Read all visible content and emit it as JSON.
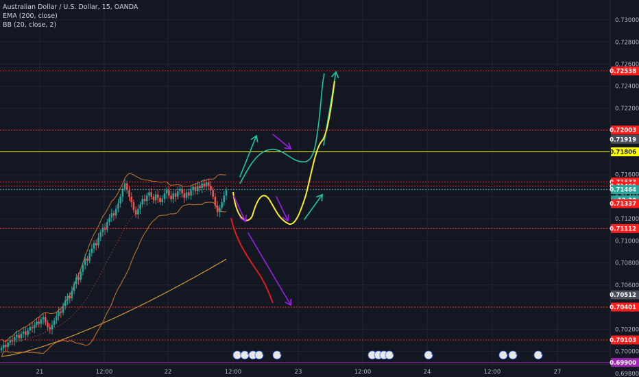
{
  "header": {
    "title": "Australian Dollar / U.S. Dollar, 15, OANDA",
    "indicators": [
      "EMA (200, close)",
      "BB (20, close, 2)"
    ]
  },
  "colors": {
    "background": "#131722",
    "grid": "#1f2431",
    "up": "#26a69a",
    "down": "#ef5350",
    "red_level": "#ff1e1e",
    "yellow_level": "#ffff00",
    "purple_level": "#9c27b0",
    "ema": "#d29a3a",
    "bb": "#c97a2b",
    "teal_path": "#1ec8a0",
    "yellow_path": "#ffee2a",
    "red_path": "#e31b1b",
    "purple_path": "#9c1fe6"
  },
  "chart_data": {
    "type": "candlestick",
    "ylim": [
      0.6988,
      0.7318
    ],
    "y_ticks": [
      "0.69800",
      "0.70000",
      "0.70200",
      "0.70400",
      "0.70600",
      "0.70800",
      "0.71000",
      "0.71200",
      "0.71400",
      "0.71600",
      "0.71800",
      "0.72000",
      "0.72200",
      "0.72400",
      "0.72600",
      "0.72800",
      "0.73000"
    ],
    "x_ticks": [
      "21",
      "12:00",
      "22",
      "12:00",
      "23",
      "12:00",
      "24",
      "12:00",
      "27"
    ],
    "price_badges": [
      {
        "label": "0.72538",
        "value": 0.72538,
        "color": "#ff1e1e"
      },
      {
        "label": "0.72003",
        "value": 0.72003,
        "color": "#ff1e1e"
      },
      {
        "label": "0.71919",
        "value": 0.71919,
        "color": "#4a4e58"
      },
      {
        "label": "0.71806",
        "value": 0.71806,
        "color": "#ffff00"
      },
      {
        "label": "0.71533",
        "value": 0.71533,
        "color": "#ff1e1e"
      },
      {
        "label": "0.71495",
        "value": 0.71495,
        "color": "#ff1e1e"
      },
      {
        "label": "0.71464",
        "value": 0.71464,
        "color": "#26a69a"
      },
      {
        "label": "12:30",
        "value": 0.7137,
        "color": "#26a69a"
      },
      {
        "label": "0.71337",
        "value": 0.71337,
        "color": "#ff1e1e"
      },
      {
        "label": "0.71112",
        "value": 0.71112,
        "color": "#ff1e1e"
      },
      {
        "label": "0.70512",
        "value": 0.70512,
        "color": "#4a4e58"
      },
      {
        "label": "0.70401",
        "value": 0.70401,
        "color": "#ff1e1e"
      },
      {
        "label": "0.70103",
        "value": 0.70103,
        "color": "#ff1e1e"
      },
      {
        "label": "0.69900",
        "value": 0.699,
        "color": "#9c27b0"
      }
    ],
    "levels": [
      {
        "value": 0.72538,
        "color": "#ff1e1e",
        "style": "dotted"
      },
      {
        "value": 0.72003,
        "color": "#ff1e1e",
        "style": "dotted"
      },
      {
        "value": 0.71806,
        "color": "#ffff00",
        "style": "solid"
      },
      {
        "value": 0.71533,
        "color": "#ff1e1e",
        "style": "dotted"
      },
      {
        "value": 0.71495,
        "color": "#ff1e1e",
        "style": "dotted"
      },
      {
        "value": 0.71464,
        "color": "#5d8c9a",
        "style": "dotted"
      },
      {
        "value": 0.71112,
        "color": "#ff1e1e",
        "style": "dotted"
      },
      {
        "value": 0.70401,
        "color": "#ff1e1e",
        "style": "dotted"
      },
      {
        "value": 0.70103,
        "color": "#ff1e1e",
        "style": "dotted"
      },
      {
        "value": 0.699,
        "color": "#9c27b0",
        "style": "solid"
      }
    ],
    "candles_close": [
      0.7003,
      0.7006,
      0.7004,
      0.7008,
      0.701,
      0.7009,
      0.7013,
      0.7015,
      0.7012,
      0.7016,
      0.7018,
      0.7015,
      0.7019,
      0.7022,
      0.7021,
      0.7024,
      0.7027,
      0.7025,
      0.7029,
      0.7031,
      0.7026,
      0.7022,
      0.702,
      0.7024,
      0.7028,
      0.7032,
      0.7036,
      0.7035,
      0.7041,
      0.7046,
      0.705,
      0.7048,
      0.7055,
      0.7061,
      0.7067,
      0.7065,
      0.7072,
      0.7078,
      0.7084,
      0.7082,
      0.7089,
      0.7093,
      0.7098,
      0.7096,
      0.7103,
      0.7108,
      0.7112,
      0.711,
      0.7117,
      0.7121,
      0.7125,
      0.7123,
      0.7129,
      0.7134,
      0.714,
      0.7147,
      0.7152,
      0.7146,
      0.714,
      0.7135,
      0.7128,
      0.7124,
      0.7129,
      0.7133,
      0.7138,
      0.7136,
      0.7141,
      0.7144,
      0.714,
      0.7137,
      0.7142,
      0.7139,
      0.7135,
      0.7138,
      0.7143,
      0.7146,
      0.7141,
      0.7138,
      0.7143,
      0.714,
      0.7145,
      0.7147,
      0.7143,
      0.7139,
      0.7144,
      0.7141,
      0.7146,
      0.7149,
      0.7145,
      0.715,
      0.7148,
      0.7152,
      0.7149,
      0.7153,
      0.715,
      0.7146,
      0.714,
      0.7132,
      0.7126,
      0.713,
      0.7135,
      0.7141,
      0.7146
    ],
    "annotation_icons": [
      "1",
      "2",
      "1",
      "1",
      "1",
      "2",
      "1",
      "1",
      "1",
      "1",
      "1",
      "1"
    ]
  }
}
